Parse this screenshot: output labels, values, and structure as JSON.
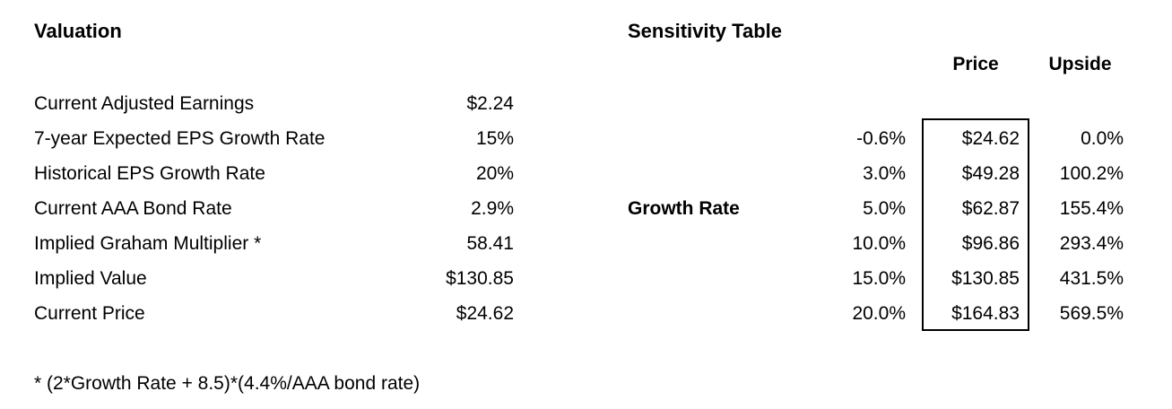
{
  "colors": {
    "background": "#ffffff",
    "text": "#000000",
    "price_box_border": "#000000"
  },
  "valuation": {
    "title": "Valuation",
    "rows": [
      {
        "label": "Current Adjusted Earnings",
        "value": "$2.24"
      },
      {
        "label": "7-year Expected EPS Growth Rate",
        "value": "15%"
      },
      {
        "label": "Historical EPS Growth Rate",
        "value": "20%"
      },
      {
        "label": "Current AAA Bond Rate",
        "value": "2.9%"
      },
      {
        "label": "Implied Graham Multiplier *",
        "value": "58.41"
      },
      {
        "label": "Implied Value",
        "value": "$130.85"
      },
      {
        "label": "Current Price",
        "value": "$24.62"
      }
    ],
    "footnote": "* (2*Growth Rate + 8.5)*(4.4%/AAA bond rate)"
  },
  "sensitivity": {
    "title": "Sensitivity Table",
    "row_axis_label": "Growth Rate",
    "columns": {
      "price": "Price",
      "upside": "Upside"
    },
    "rows": [
      {
        "growth": "-0.6%",
        "price": "$24.62",
        "upside": "0.0%"
      },
      {
        "growth": "3.0%",
        "price": "$49.28",
        "upside": "100.2%"
      },
      {
        "growth": "5.0%",
        "price": "$62.87",
        "upside": "155.4%"
      },
      {
        "growth": "10.0%",
        "price": "$96.86",
        "upside": "293.4%"
      },
      {
        "growth": "15.0%",
        "price": "$130.85",
        "upside": "431.5%"
      },
      {
        "growth": "20.0%",
        "price": "$164.83",
        "upside": "569.5%"
      }
    ]
  }
}
